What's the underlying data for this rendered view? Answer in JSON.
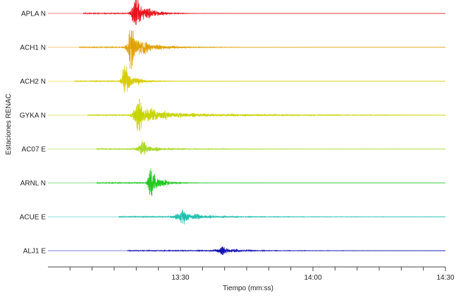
{
  "chart_data": {
    "type": "line",
    "title": "",
    "xlabel": "Tiempo (mm:ss)",
    "ylabel": "Estaciones RENAC",
    "x_ticks": [
      {
        "label": "13:30",
        "t": 30
      },
      {
        "label": "14:00",
        "t": 60
      },
      {
        "label": "14:30",
        "t": 90
      }
    ],
    "xlim": [
      0,
      90
    ],
    "grid": false,
    "series": [
      {
        "name": "APLA N",
        "color": "#e8141e",
        "start": 8,
        "onset": 18,
        "peak": 19.5,
        "amp": 1.0,
        "decay": 2.5,
        "coda": 0.05,
        "burst": 0.9
      },
      {
        "name": "ACH1 N",
        "color": "#e0a000",
        "start": 7,
        "onset": 17,
        "peak": 18.3,
        "amp": 1.0,
        "decay": 4,
        "coda": 0.12,
        "burst": 0.6
      },
      {
        "name": "ACH2 N",
        "color": "#d8cc00",
        "start": 6,
        "onset": 16,
        "peak": 17.0,
        "amp": 0.85,
        "decay": 3,
        "coda": 0.06,
        "burst": 0.5
      },
      {
        "name": "GYKA N",
        "color": "#c6d400",
        "start": 9,
        "onset": 18,
        "peak": 20.0,
        "amp": 0.75,
        "decay": 10,
        "coda": 0.15,
        "burst": 0.3
      },
      {
        "name": "AC07 E",
        "color": "#a8d820",
        "start": 11,
        "onset": 19,
        "peak": 21.0,
        "amp": 0.4,
        "decay": 8,
        "coda": 0.05,
        "burst": 0.2
      },
      {
        "name": "ARNL N",
        "color": "#1fc81f",
        "start": 11,
        "onset": 22,
        "peak": 23.0,
        "amp": 0.85,
        "decay": 3,
        "coda": 0.05,
        "burst": 0.5
      },
      {
        "name": "ACUE E",
        "color": "#1fbfb0",
        "start": 16,
        "onset": 27,
        "peak": 30.0,
        "amp": 0.35,
        "decay": 14,
        "coda": 0.04,
        "burst": 0.2
      },
      {
        "name": "ALJ1 E",
        "color": "#1010b0",
        "start": 18,
        "onset": 37,
        "peak": 39.0,
        "amp": 0.22,
        "decay": 12,
        "coda": 0.03,
        "burst": 0.2
      }
    ]
  }
}
